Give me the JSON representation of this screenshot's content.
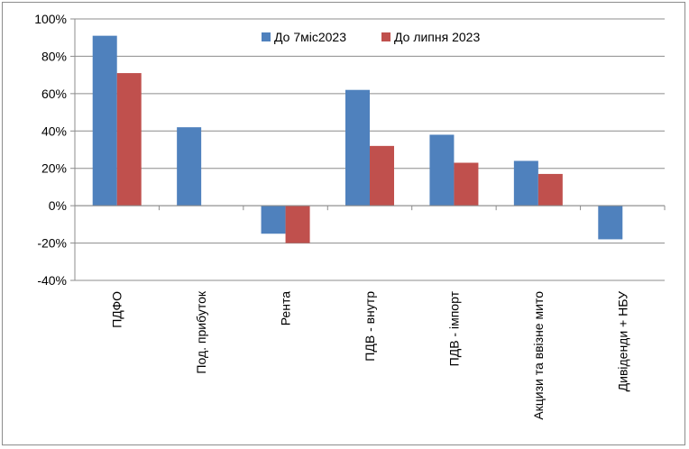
{
  "chart_data": {
    "type": "bar",
    "categories": [
      "ПДФО",
      "Под. прибуток",
      "Рента",
      "ПДВ - внутр",
      "ПДВ - імпорт",
      "Акцизи та ввізне мито",
      "Дивіденди + НБУ"
    ],
    "series": [
      {
        "name": "До 7міс2023",
        "color": "#4f81bd",
        "values": [
          91,
          42,
          -15,
          62,
          38,
          24,
          -18
        ]
      },
      {
        "name": "До липня 2023",
        "color": "#c0504d",
        "values": [
          71,
          null,
          -20,
          32,
          23,
          17,
          null
        ]
      }
    ],
    "yticks": [
      "100%",
      "80%",
      "60%",
      "40%",
      "20%",
      "0%",
      "-20%",
      "-40%"
    ],
    "ylim": [
      -40,
      100
    ],
    "grid": true,
    "legend_position": "top-right"
  }
}
